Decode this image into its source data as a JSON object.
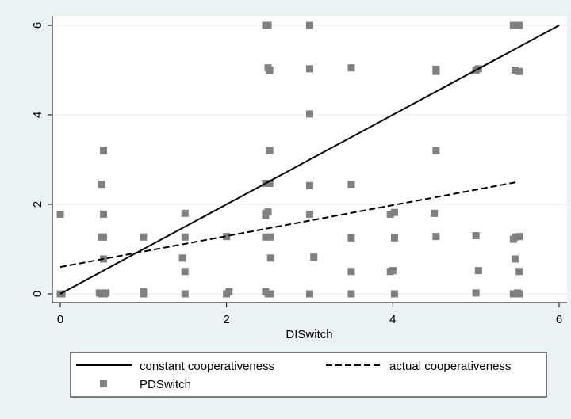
{
  "chart_data": {
    "type": "scatter",
    "title": "",
    "xlabel": "DISwitch",
    "ylabel": "",
    "xlim": [
      0,
      6
    ],
    "ylim": [
      0,
      6
    ],
    "x_ticks": [
      "0",
      "2",
      "4",
      "6"
    ],
    "y_ticks": [
      "0",
      "2",
      "4",
      "6"
    ],
    "grid": "horizontal",
    "legend_position": "bottom",
    "colors": {
      "background": "#eaf2f3",
      "plot_area": "#ffffff",
      "markers": "#808080",
      "lines": "#000000",
      "gridlines": "#eaf2f3"
    },
    "lines": [
      {
        "name": "constant cooperativeness",
        "style": "solid",
        "x": [
          0,
          6
        ],
        "y": [
          0,
          6
        ]
      },
      {
        "name": "actual cooperativeness",
        "style": "dashed",
        "x": [
          0,
          5.5
        ],
        "y": [
          0.6,
          2.5
        ]
      }
    ],
    "scatter_series": {
      "name": "PDSwitch",
      "points": [
        [
          0,
          1.78
        ],
        [
          0,
          0
        ],
        [
          0.02,
          0
        ],
        [
          0.47,
          0.02
        ],
        [
          0.5,
          2.45
        ],
        [
          0.5,
          1.27
        ],
        [
          0.52,
          1.27
        ],
        [
          0.5,
          0
        ],
        [
          0.53,
          0
        ],
        [
          0.55,
          0.02
        ],
        [
          0.52,
          0.78
        ],
        [
          0.52,
          1.78
        ],
        [
          0.52,
          3.2
        ],
        [
          1,
          0
        ],
        [
          1,
          0.05
        ],
        [
          1.0,
          1.27
        ],
        [
          1.5,
          1.8
        ],
        [
          1.5,
          1.27
        ],
        [
          1.47,
          0.8
        ],
        [
          1.5,
          0.5
        ],
        [
          1.5,
          0
        ],
        [
          2,
          1.28
        ],
        [
          2.0,
          0
        ],
        [
          2.03,
          0.05
        ],
        [
          2.47,
          6
        ],
        [
          2.5,
          6
        ],
        [
          2.5,
          5.05
        ],
        [
          2.52,
          5.0
        ],
        [
          2.52,
          3.2
        ],
        [
          2.47,
          2.47
        ],
        [
          2.52,
          2.47
        ],
        [
          2.47,
          1.8
        ],
        [
          2.5,
          1.83
        ],
        [
          2.47,
          1.75
        ],
        [
          2.47,
          1.27
        ],
        [
          2.53,
          1.27
        ],
        [
          2.53,
          0.8
        ],
        [
          2.47,
          0.05
        ],
        [
          2.5,
          0
        ],
        [
          2.53,
          0
        ],
        [
          3,
          6
        ],
        [
          3,
          5.03
        ],
        [
          3,
          4.02
        ],
        [
          3,
          2.42
        ],
        [
          3,
          1.78
        ],
        [
          3.05,
          0.82
        ],
        [
          3,
          0
        ],
        [
          3.5,
          5.05
        ],
        [
          3.5,
          2.45
        ],
        [
          3.5,
          1.25
        ],
        [
          3.5,
          0.5
        ],
        [
          3.5,
          0
        ],
        [
          3.97,
          1.78
        ],
        [
          4.02,
          1.82
        ],
        [
          4.02,
          1.25
        ],
        [
          3.97,
          0.5
        ],
        [
          4.0,
          0.52
        ],
        [
          4.02,
          0
        ],
        [
          4.52,
          5.02
        ],
        [
          4.52,
          4.97
        ],
        [
          4.52,
          3.2
        ],
        [
          4.5,
          1.8
        ],
        [
          4.52,
          1.28
        ],
        [
          5,
          5.0
        ],
        [
          5.03,
          5.03
        ],
        [
          5,
          1.3
        ],
        [
          5.03,
          0.52
        ],
        [
          5,
          0.02
        ],
        [
          5.45,
          6
        ],
        [
          5.52,
          6
        ],
        [
          5.47,
          5.0
        ],
        [
          5.52,
          4.97
        ],
        [
          5.47,
          1.27
        ],
        [
          5.52,
          1.28
        ],
        [
          5.45,
          1.22
        ],
        [
          5.47,
          0.78
        ],
        [
          5.52,
          0.5
        ],
        [
          5.45,
          0
        ],
        [
          5.5,
          0.02
        ],
        [
          5.52,
          0
        ]
      ]
    }
  }
}
